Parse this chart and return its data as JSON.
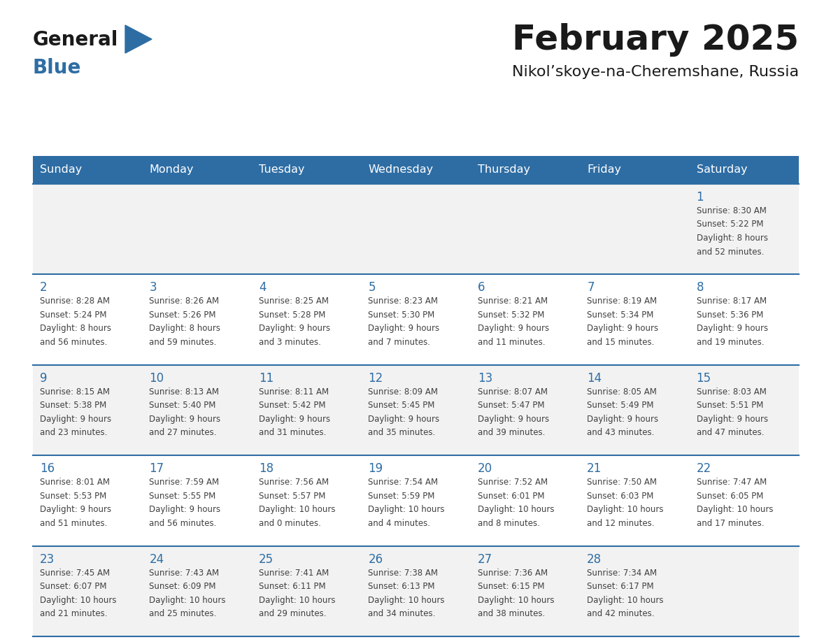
{
  "title": "February 2025",
  "subtitle": "Nikol’skoye-na-Cheremshane, Russia",
  "header_bg": "#2E6DA4",
  "header_text_color": "#FFFFFF",
  "day_headers": [
    "Sunday",
    "Monday",
    "Tuesday",
    "Wednesday",
    "Thursday",
    "Friday",
    "Saturday"
  ],
  "cell_bg_even": "#F2F2F2",
  "cell_bg_odd": "#FFFFFF",
  "date_color": "#2E6DA4",
  "text_color": "#404040",
  "line_color": "#2E6DA4",
  "logo_general_color": "#1a1a1a",
  "logo_blue_color": "#2E6DA4",
  "calendar": [
    [
      null,
      null,
      null,
      null,
      null,
      null,
      {
        "day": "1",
        "sunrise": "8:30 AM",
        "sunset": "5:22 PM",
        "daylight_h": "8 hours",
        "daylight_m": "and 52 minutes."
      }
    ],
    [
      {
        "day": "2",
        "sunrise": "8:28 AM",
        "sunset": "5:24 PM",
        "daylight_h": "8 hours",
        "daylight_m": "and 56 minutes."
      },
      {
        "day": "3",
        "sunrise": "8:26 AM",
        "sunset": "5:26 PM",
        "daylight_h": "8 hours",
        "daylight_m": "and 59 minutes."
      },
      {
        "day": "4",
        "sunrise": "8:25 AM",
        "sunset": "5:28 PM",
        "daylight_h": "9 hours",
        "daylight_m": "and 3 minutes."
      },
      {
        "day": "5",
        "sunrise": "8:23 AM",
        "sunset": "5:30 PM",
        "daylight_h": "9 hours",
        "daylight_m": "and 7 minutes."
      },
      {
        "day": "6",
        "sunrise": "8:21 AM",
        "sunset": "5:32 PM",
        "daylight_h": "9 hours",
        "daylight_m": "and 11 minutes."
      },
      {
        "day": "7",
        "sunrise": "8:19 AM",
        "sunset": "5:34 PM",
        "daylight_h": "9 hours",
        "daylight_m": "and 15 minutes."
      },
      {
        "day": "8",
        "sunrise": "8:17 AM",
        "sunset": "5:36 PM",
        "daylight_h": "9 hours",
        "daylight_m": "and 19 minutes."
      }
    ],
    [
      {
        "day": "9",
        "sunrise": "8:15 AM",
        "sunset": "5:38 PM",
        "daylight_h": "9 hours",
        "daylight_m": "and 23 minutes."
      },
      {
        "day": "10",
        "sunrise": "8:13 AM",
        "sunset": "5:40 PM",
        "daylight_h": "9 hours",
        "daylight_m": "and 27 minutes."
      },
      {
        "day": "11",
        "sunrise": "8:11 AM",
        "sunset": "5:42 PM",
        "daylight_h": "9 hours",
        "daylight_m": "and 31 minutes."
      },
      {
        "day": "12",
        "sunrise": "8:09 AM",
        "sunset": "5:45 PM",
        "daylight_h": "9 hours",
        "daylight_m": "and 35 minutes."
      },
      {
        "day": "13",
        "sunrise": "8:07 AM",
        "sunset": "5:47 PM",
        "daylight_h": "9 hours",
        "daylight_m": "and 39 minutes."
      },
      {
        "day": "14",
        "sunrise": "8:05 AM",
        "sunset": "5:49 PM",
        "daylight_h": "9 hours",
        "daylight_m": "and 43 minutes."
      },
      {
        "day": "15",
        "sunrise": "8:03 AM",
        "sunset": "5:51 PM",
        "daylight_h": "9 hours",
        "daylight_m": "and 47 minutes."
      }
    ],
    [
      {
        "day": "16",
        "sunrise": "8:01 AM",
        "sunset": "5:53 PM",
        "daylight_h": "9 hours",
        "daylight_m": "and 51 minutes."
      },
      {
        "day": "17",
        "sunrise": "7:59 AM",
        "sunset": "5:55 PM",
        "daylight_h": "9 hours",
        "daylight_m": "and 56 minutes."
      },
      {
        "day": "18",
        "sunrise": "7:56 AM",
        "sunset": "5:57 PM",
        "daylight_h": "10 hours",
        "daylight_m": "and 0 minutes."
      },
      {
        "day": "19",
        "sunrise": "7:54 AM",
        "sunset": "5:59 PM",
        "daylight_h": "10 hours",
        "daylight_m": "and 4 minutes."
      },
      {
        "day": "20",
        "sunrise": "7:52 AM",
        "sunset": "6:01 PM",
        "daylight_h": "10 hours",
        "daylight_m": "and 8 minutes."
      },
      {
        "day": "21",
        "sunrise": "7:50 AM",
        "sunset": "6:03 PM",
        "daylight_h": "10 hours",
        "daylight_m": "and 12 minutes."
      },
      {
        "day": "22",
        "sunrise": "7:47 AM",
        "sunset": "6:05 PM",
        "daylight_h": "10 hours",
        "daylight_m": "and 17 minutes."
      }
    ],
    [
      {
        "day": "23",
        "sunrise": "7:45 AM",
        "sunset": "6:07 PM",
        "daylight_h": "10 hours",
        "daylight_m": "and 21 minutes."
      },
      {
        "day": "24",
        "sunrise": "7:43 AM",
        "sunset": "6:09 PM",
        "daylight_h": "10 hours",
        "daylight_m": "and 25 minutes."
      },
      {
        "day": "25",
        "sunrise": "7:41 AM",
        "sunset": "6:11 PM",
        "daylight_h": "10 hours",
        "daylight_m": "and 29 minutes."
      },
      {
        "day": "26",
        "sunrise": "7:38 AM",
        "sunset": "6:13 PM",
        "daylight_h": "10 hours",
        "daylight_m": "and 34 minutes."
      },
      {
        "day": "27",
        "sunrise": "7:36 AM",
        "sunset": "6:15 PM",
        "daylight_h": "10 hours",
        "daylight_m": "and 38 minutes."
      },
      {
        "day": "28",
        "sunrise": "7:34 AM",
        "sunset": "6:17 PM",
        "daylight_h": "10 hours",
        "daylight_m": "and 42 minutes."
      },
      null
    ]
  ]
}
